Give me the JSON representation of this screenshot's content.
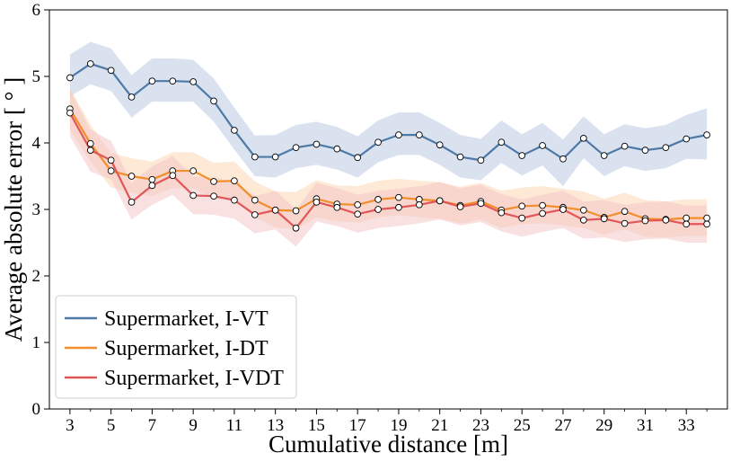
{
  "chart_data": {
    "type": "line",
    "title": "",
    "xlabel": "Cumulative distance [m]",
    "ylabel": "Average absolute error [ ° ]",
    "xlim": [
      2.0,
      35.0
    ],
    "ylim": [
      0,
      6
    ],
    "xticks": [
      3,
      5,
      7,
      9,
      11,
      13,
      15,
      17,
      19,
      21,
      23,
      25,
      27,
      29,
      31,
      33
    ],
    "yticks": [
      0,
      1,
      2,
      3,
      4,
      5,
      6
    ],
    "grid": false,
    "legend_position": "bottom-left",
    "x": [
      3,
      4,
      5,
      6,
      7,
      8,
      9,
      10,
      11,
      12,
      13,
      14,
      15,
      16,
      17,
      18,
      19,
      20,
      21,
      22,
      23,
      24,
      25,
      26,
      27,
      28,
      29,
      30,
      31,
      32,
      33,
      34
    ],
    "series": [
      {
        "name": "Supermarket, I-VT",
        "color": "#4e79a7",
        "band_color": "#b5c6e0",
        "values": [
          4.98,
          5.19,
          5.09,
          4.69,
          4.93,
          4.93,
          4.92,
          4.63,
          4.19,
          3.79,
          3.79,
          3.93,
          3.98,
          3.91,
          3.78,
          4.01,
          4.12,
          4.12,
          3.97,
          3.79,
          3.74,
          4.01,
          3.81,
          3.96,
          3.76,
          4.07,
          3.81,
          3.95,
          3.89,
          3.93,
          4.06,
          4.12
        ],
        "band_lower": [
          4.7,
          4.88,
          4.78,
          4.38,
          4.62,
          4.62,
          4.62,
          4.32,
          3.9,
          3.5,
          3.48,
          3.62,
          3.67,
          3.6,
          3.48,
          3.71,
          3.82,
          3.82,
          3.67,
          3.48,
          3.44,
          3.7,
          3.51,
          3.66,
          3.35,
          3.77,
          3.5,
          3.65,
          3.58,
          3.62,
          3.76,
          3.75
        ],
        "band_upper": [
          5.33,
          5.52,
          5.42,
          5.02,
          5.27,
          5.27,
          5.25,
          4.97,
          4.53,
          4.11,
          4.12,
          4.27,
          4.32,
          4.24,
          4.1,
          4.34,
          4.46,
          4.46,
          4.3,
          4.12,
          4.06,
          4.34,
          4.13,
          4.3,
          4.05,
          4.4,
          4.13,
          4.28,
          4.22,
          4.27,
          4.42,
          4.52
        ]
      },
      {
        "name": "Supermarket, I-DT",
        "color": "#f28e2b",
        "band_color": "#fbd3ae",
        "values": [
          4.51,
          3.99,
          3.58,
          3.5,
          3.45,
          3.58,
          3.58,
          3.42,
          3.43,
          3.14,
          2.99,
          2.98,
          3.16,
          3.08,
          3.07,
          3.15,
          3.18,
          3.15,
          3.13,
          3.06,
          3.12,
          2.99,
          3.05,
          3.06,
          3.03,
          2.99,
          2.88,
          2.97,
          2.86,
          2.85,
          2.87,
          2.87
        ],
        "band_lower": [
          4.2,
          3.72,
          3.33,
          3.25,
          3.2,
          3.32,
          3.32,
          3.15,
          3.17,
          2.88,
          2.73,
          2.7,
          2.88,
          2.82,
          2.8,
          2.88,
          2.91,
          2.88,
          2.86,
          2.79,
          2.85,
          2.72,
          2.78,
          2.79,
          2.76,
          2.72,
          2.62,
          2.7,
          2.59,
          2.58,
          2.6,
          2.6
        ],
        "band_upper": [
          4.82,
          4.27,
          3.85,
          3.77,
          3.72,
          3.86,
          3.86,
          3.7,
          3.72,
          3.42,
          3.27,
          3.26,
          3.44,
          3.36,
          3.35,
          3.43,
          3.46,
          3.43,
          3.41,
          3.34,
          3.4,
          3.28,
          3.33,
          3.35,
          3.31,
          3.27,
          3.16,
          3.25,
          3.14,
          3.12,
          3.15,
          3.15
        ]
      },
      {
        "name": "Supermarket, I-VDT",
        "color": "#e15759",
        "band_color": "#f4c4c4",
        "values": [
          4.45,
          3.89,
          3.74,
          3.11,
          3.36,
          3.51,
          3.21,
          3.2,
          3.14,
          2.92,
          2.99,
          2.72,
          3.11,
          3.03,
          2.93,
          3.0,
          3.03,
          3.07,
          3.13,
          3.04,
          3.09,
          2.95,
          2.87,
          2.94,
          3.0,
          2.84,
          2.86,
          2.79,
          2.83,
          2.84,
          2.78,
          2.78
        ],
        "band_lower": [
          4.1,
          3.57,
          3.45,
          2.85,
          3.07,
          3.22,
          2.93,
          2.92,
          2.86,
          2.64,
          2.7,
          2.44,
          2.82,
          2.75,
          2.65,
          2.72,
          2.75,
          2.79,
          2.85,
          2.76,
          2.81,
          2.67,
          2.59,
          2.66,
          2.72,
          2.56,
          2.58,
          2.51,
          2.55,
          2.56,
          2.5,
          2.5
        ],
        "band_upper": [
          4.8,
          4.2,
          4.03,
          3.4,
          3.65,
          3.8,
          3.5,
          3.48,
          3.42,
          3.2,
          3.28,
          3.0,
          3.4,
          3.32,
          3.22,
          3.28,
          3.31,
          3.35,
          3.41,
          3.32,
          3.37,
          3.23,
          3.15,
          3.22,
          3.28,
          3.12,
          3.14,
          3.07,
          3.11,
          3.12,
          3.06,
          3.06
        ]
      }
    ]
  }
}
